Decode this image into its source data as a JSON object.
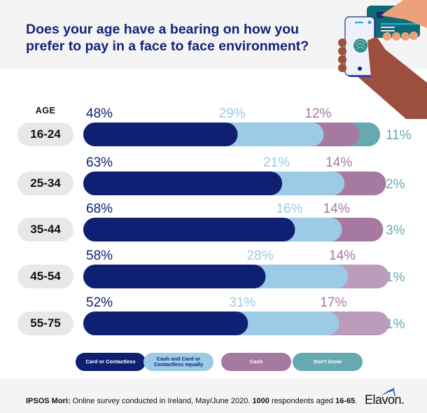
{
  "header": {
    "title": "Does your age have a bearing on how you prefer to pay in a face to face environment?"
  },
  "age_header": "AGE",
  "colors": {
    "card": "#0f2073",
    "both": "#9bcbe6",
    "cash": "#a679a0",
    "cash_light": "#bd9bba",
    "dont_know": "#66a9b0",
    "title": "#13237a",
    "pill_bg": "#e8e8e8",
    "band_bg": "#f4f4f5"
  },
  "chart_data": {
    "type": "bar",
    "orientation": "horizontal",
    "stacked": true,
    "title": "Does your age have a bearing on how you prefer to pay in a face to face environment?",
    "xlabel": "",
    "ylabel": "AGE",
    "categories": [
      "16-24",
      "25-34",
      "35-44",
      "45-54",
      "55-75"
    ],
    "series": [
      {
        "name": "Card or Contactless",
        "values": [
          48,
          63,
          68,
          58,
          52
        ]
      },
      {
        "name": "Cash and Card or Contactless equally",
        "values": [
          29,
          21,
          16,
          28,
          31
        ]
      },
      {
        "name": "Cash",
        "values": [
          12,
          14,
          14,
          14,
          17
        ]
      },
      {
        "name": "Don't know",
        "values": [
          11,
          2,
          3,
          1,
          1
        ]
      }
    ],
    "data_labels": [
      [
        "48%",
        "29%",
        "12%",
        "11%"
      ],
      [
        "63%",
        "21%",
        "14%",
        "2%"
      ],
      [
        "68%",
        "16%",
        "14%",
        "3%"
      ],
      [
        "58%",
        "28%",
        "14%",
        "1%"
      ],
      [
        "52%",
        "31%",
        "17%",
        "1%"
      ]
    ],
    "xlim": [
      0,
      100
    ],
    "legend_position": "bottom",
    "grid": false
  },
  "legend": [
    {
      "label": "Card or Contactless",
      "lines": [
        "Card or Contactless"
      ]
    },
    {
      "label": "Cash and Card or Contactless equally",
      "lines": [
        "Cash and Card or",
        "Contactless equally"
      ]
    },
    {
      "label": "Cash",
      "lines": [
        "Cash"
      ]
    },
    {
      "label": "Don't know",
      "lines": [
        "Don't know"
      ]
    }
  ],
  "footer": {
    "source_bold": "IPSOS Mori:",
    "source_text_1": " Online survey conducted in Ireland, May/June 2020. ",
    "respondents_bold": "1000",
    "source_text_2": " respondents aged ",
    "ages_bold": "16-65",
    "source_text_3": ".",
    "logo_text": "Elavon."
  }
}
